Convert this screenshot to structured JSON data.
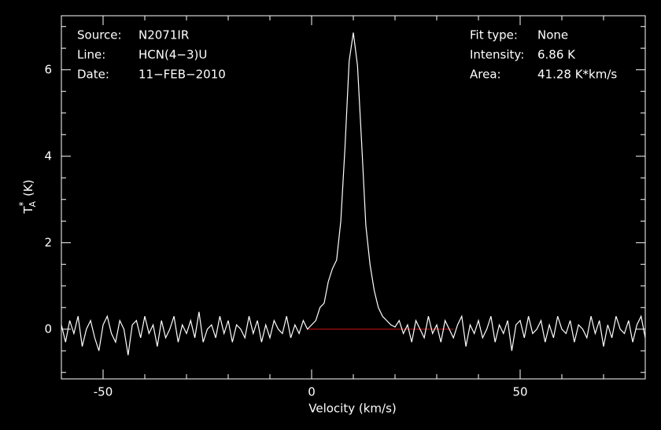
{
  "chart_data": {
    "type": "line",
    "xlabel": "Velocity (km/s)",
    "ylabel": {
      "symbol": "T",
      "sub": "A",
      "sup": "*",
      "unit": "(K)"
    },
    "xlim": [
      -60,
      80
    ],
    "ylim": [
      -1.15,
      7.25
    ],
    "xticks": [
      -50,
      0,
      50
    ],
    "yticks": [
      0,
      2,
      4,
      6
    ],
    "xminorticks": [
      -60,
      -40,
      -30,
      -20,
      -10,
      10,
      20,
      30,
      40,
      60,
      70,
      80
    ],
    "yminorticks": [
      -1,
      -0.5,
      0.5,
      1,
      1.5,
      2.5,
      3,
      3.5,
      4.5,
      5,
      5.5,
      6.5,
      7
    ],
    "annotations_left": [
      {
        "label": "Source:",
        "value": "N2071IR"
      },
      {
        "label": "Line:",
        "value": "HCN(4−3)U"
      },
      {
        "label": "Date:",
        "value": "11−FEB−2010"
      }
    ],
    "annotations_right": [
      {
        "label": "Fit type:",
        "value": "None"
      },
      {
        "label": "Intensity:",
        "value": "6.86 K"
      },
      {
        "label": "Area:",
        "value": "41.28 K*km/s"
      }
    ],
    "baseline": {
      "x": [
        -1,
        34
      ],
      "y": 0,
      "color": "#d01010"
    },
    "x": [
      -60,
      -59,
      -58,
      -57,
      -56,
      -55,
      -54,
      -53,
      -52,
      -51,
      -50,
      -49,
      -48,
      -47,
      -46,
      -45,
      -44,
      -43,
      -42,
      -41,
      -40,
      -39,
      -38,
      -37,
      -36,
      -35,
      -34,
      -33,
      -32,
      -31,
      -30,
      -29,
      -28,
      -27,
      -26,
      -25,
      -24,
      -23,
      -22,
      -21,
      -20,
      -19,
      -18,
      -17,
      -16,
      -15,
      -14,
      -13,
      -12,
      -11,
      -10,
      -9,
      -8,
      -7,
      -6,
      -5,
      -4,
      -3,
      -2,
      -1,
      0,
      1,
      2,
      3,
      4,
      5,
      6,
      7,
      8,
      9,
      10,
      11,
      12,
      13,
      14,
      15,
      16,
      17,
      18,
      19,
      20,
      21,
      22,
      23,
      24,
      25,
      26,
      27,
      28,
      29,
      30,
      31,
      32,
      33,
      34,
      35,
      36,
      37,
      38,
      39,
      40,
      41,
      42,
      43,
      44,
      45,
      46,
      47,
      48,
      49,
      50,
      51,
      52,
      53,
      54,
      55,
      56,
      57,
      58,
      59,
      60,
      61,
      62,
      63,
      64,
      65,
      66,
      67,
      68,
      69,
      70,
      71,
      72,
      73,
      74,
      75,
      76,
      77,
      78,
      79,
      80
    ],
    "series": [
      {
        "color": "#ffffff",
        "values": [
          0.1,
          -0.3,
          0.2,
          -0.1,
          0.3,
          -0.4,
          0.0,
          0.2,
          -0.2,
          -0.5,
          0.1,
          0.3,
          -0.1,
          -0.3,
          0.2,
          0.0,
          -0.6,
          0.1,
          0.2,
          -0.2,
          0.3,
          -0.1,
          0.1,
          -0.4,
          0.2,
          -0.2,
          0.0,
          0.3,
          -0.3,
          0.1,
          -0.1,
          0.2,
          -0.2,
          0.4,
          -0.3,
          0.0,
          0.1,
          -0.2,
          0.3,
          -0.1,
          0.2,
          -0.3,
          0.1,
          0.0,
          -0.2,
          0.3,
          -0.1,
          0.2,
          -0.3,
          0.1,
          -0.2,
          0.2,
          0.0,
          -0.1,
          0.3,
          -0.2,
          0.1,
          -0.1,
          0.2,
          0.0,
          0.1,
          0.2,
          0.5,
          0.6,
          1.1,
          1.4,
          1.6,
          2.5,
          4.2,
          6.2,
          6.86,
          6.1,
          4.3,
          2.4,
          1.5,
          0.9,
          0.5,
          0.3,
          0.2,
          0.1,
          0.05,
          0.2,
          -0.1,
          0.1,
          -0.3,
          0.2,
          0.0,
          -0.2,
          0.3,
          -0.1,
          0.1,
          -0.3,
          0.2,
          0.0,
          -0.2,
          0.1,
          0.3,
          -0.4,
          0.1,
          -0.1,
          0.2,
          -0.2,
          0.0,
          0.3,
          -0.3,
          0.1,
          -0.1,
          0.2,
          -0.5,
          0.1,
          0.2,
          -0.2,
          0.3,
          -0.1,
          0.0,
          0.2,
          -0.3,
          0.1,
          -0.2,
          0.3,
          0.0,
          -0.1,
          0.2,
          -0.3,
          0.1,
          0.0,
          -0.2,
          0.3,
          -0.1,
          0.2,
          -0.4,
          0.1,
          -0.2,
          0.3,
          0.0,
          -0.1,
          0.2,
          -0.3,
          0.1,
          0.3,
          -0.2
        ]
      }
    ]
  }
}
